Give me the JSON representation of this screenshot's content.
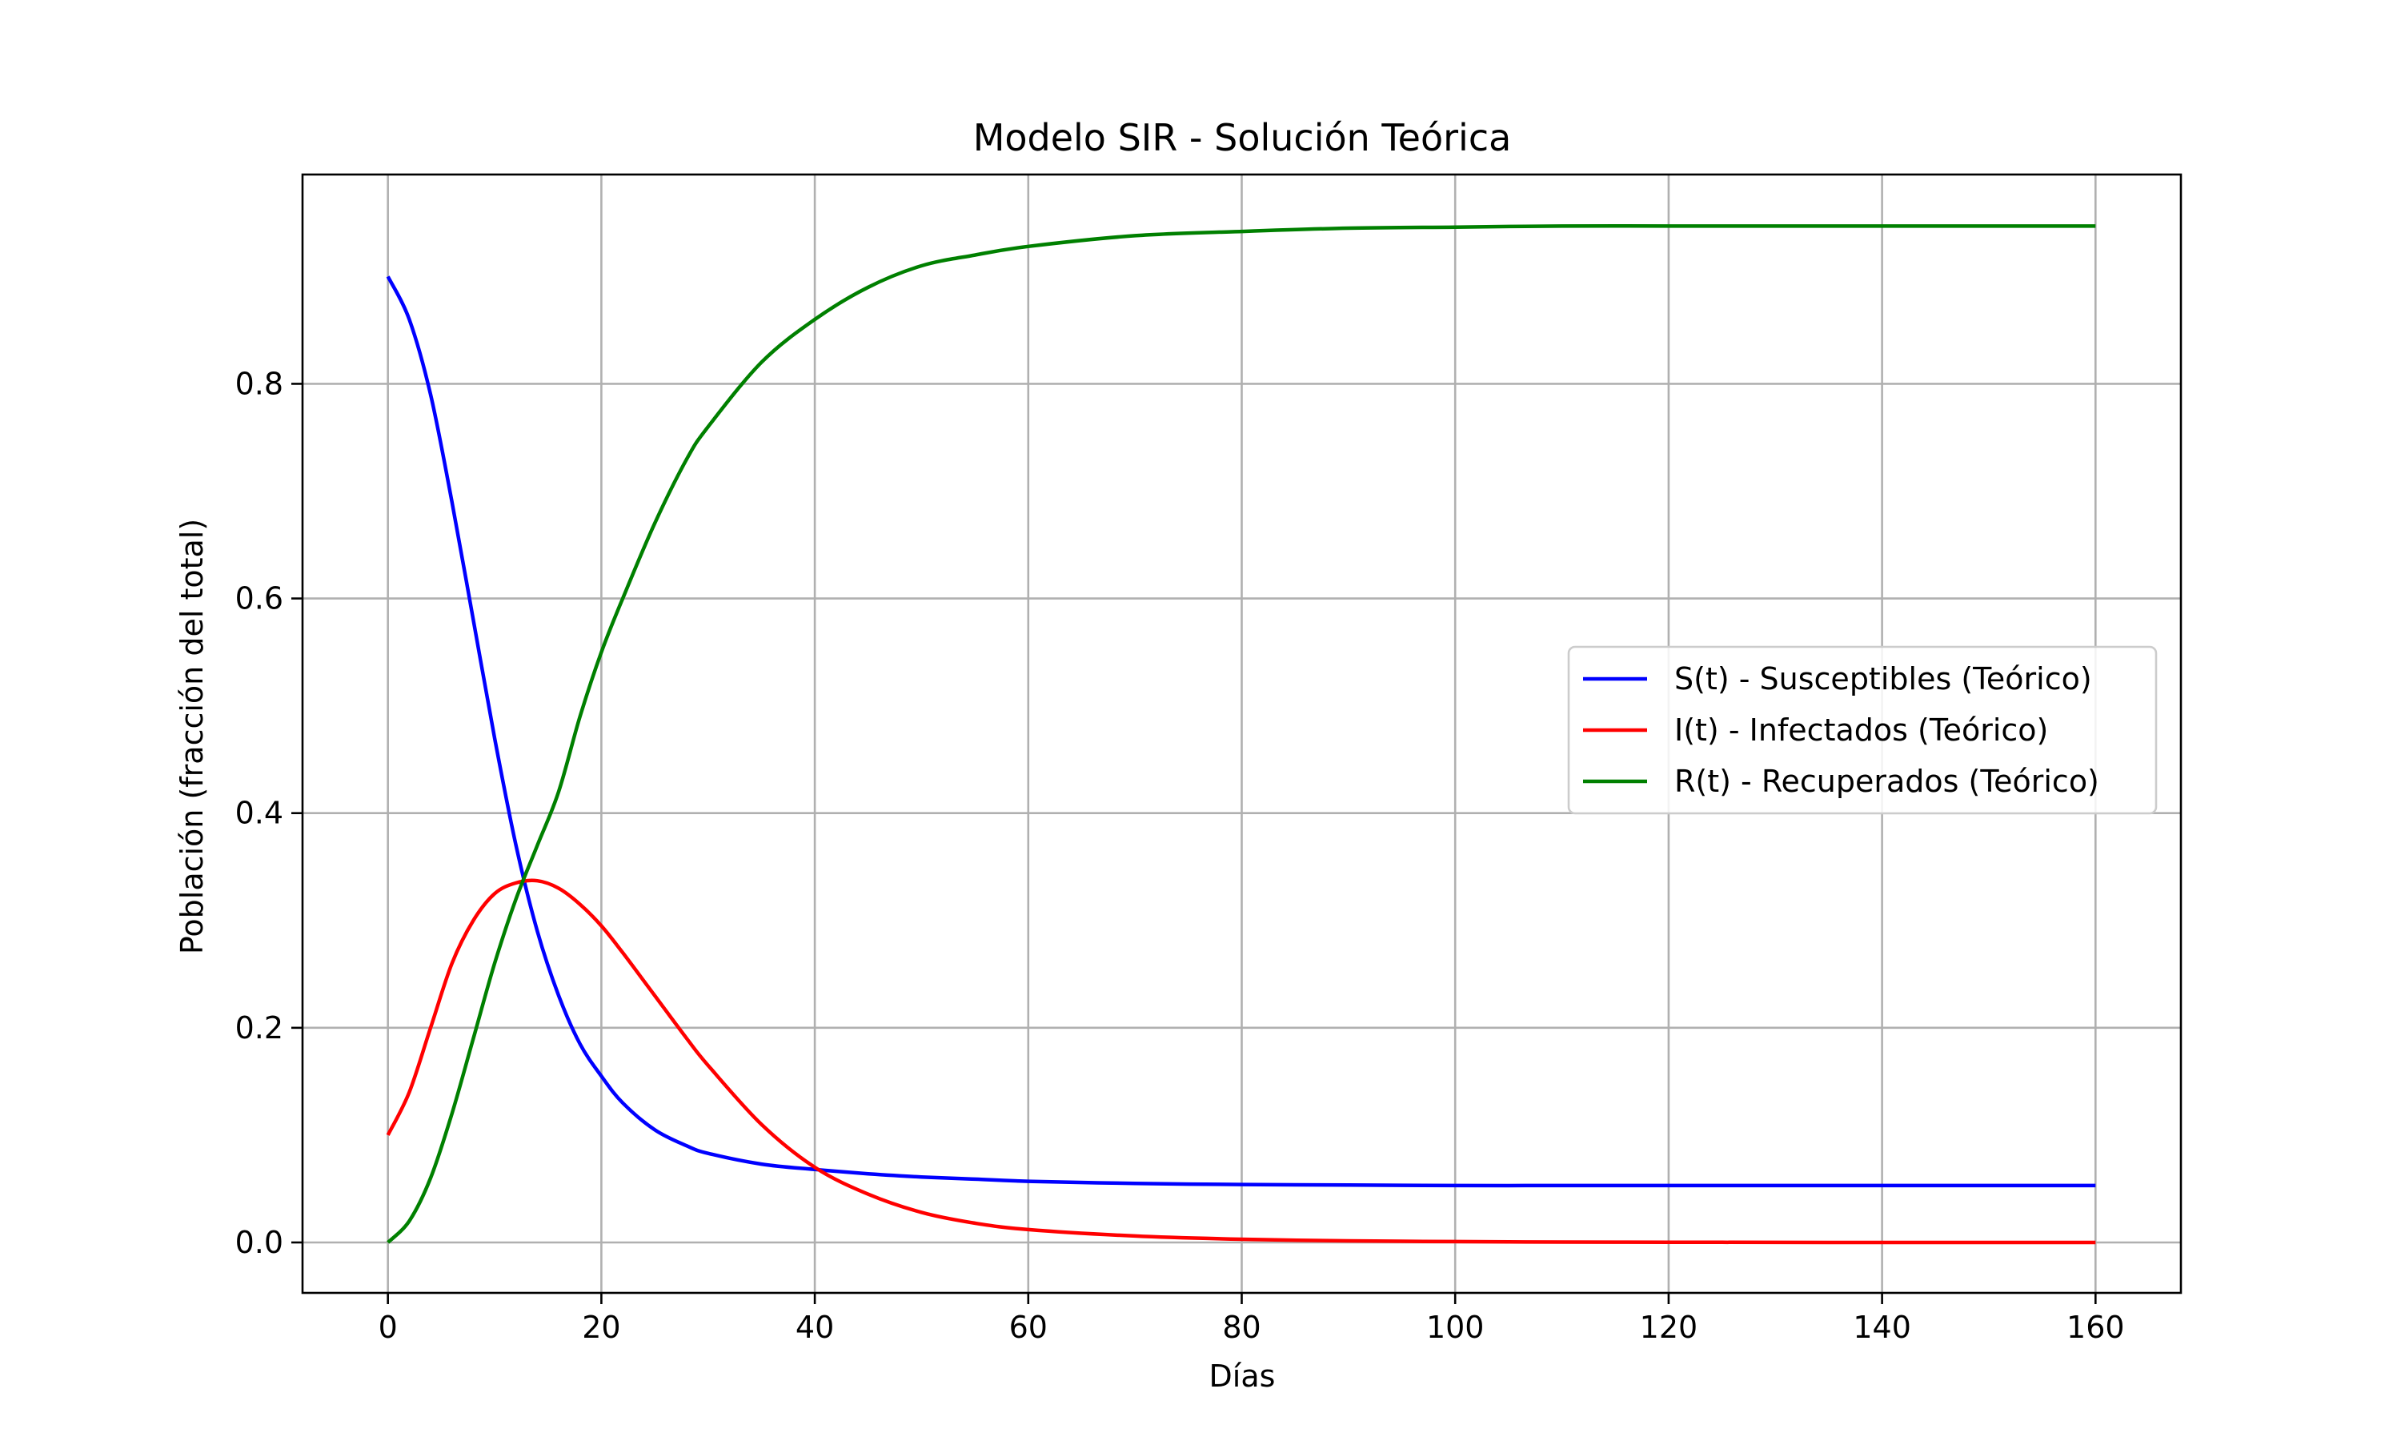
{
  "chart_data": {
    "type": "line",
    "title": "Modelo SIR - Solución Teórica",
    "xlabel": "Días",
    "ylabel": "Población (fracción del total)",
    "xlim": [
      -8,
      168
    ],
    "ylim": [
      -0.047,
      0.995
    ],
    "xticks": [
      0,
      20,
      40,
      60,
      80,
      100,
      120,
      140,
      160
    ],
    "yticks": [
      0.0,
      0.2,
      0.4,
      0.6,
      0.8
    ],
    "xtick_labels": [
      "0",
      "20",
      "40",
      "60",
      "80",
      "100",
      "120",
      "140",
      "160"
    ],
    "ytick_labels": [
      "0.0",
      "0.2",
      "0.4",
      "0.6",
      "0.8"
    ],
    "grid": true,
    "legend_position": "center-right",
    "x": [
      0,
      2,
      4,
      6,
      8,
      10,
      12,
      14,
      16,
      18,
      20,
      22,
      25,
      28,
      30,
      35,
      40,
      45,
      50,
      55,
      60,
      70,
      80,
      90,
      100,
      110,
      120,
      130,
      140,
      150,
      160
    ],
    "series": [
      {
        "name": "S(t) - Susceptibles (Teórico)",
        "color": "#0000ff",
        "values": [
          0.9,
          0.86,
          0.79,
          0.69,
          0.58,
          0.47,
          0.37,
          0.29,
          0.23,
          0.185,
          0.155,
          0.13,
          0.105,
          0.09,
          0.083,
          0.073,
          0.068,
          0.064,
          0.061,
          0.059,
          0.057,
          0.055,
          0.054,
          0.0535,
          0.053,
          0.053,
          0.053,
          0.053,
          0.053,
          0.053,
          0.053
        ]
      },
      {
        "name": "I(t) - Infectados (Teórico)",
        "color": "#ff0000",
        "values": [
          0.1,
          0.14,
          0.2,
          0.26,
          0.3,
          0.325,
          0.335,
          0.337,
          0.33,
          0.315,
          0.295,
          0.27,
          0.23,
          0.19,
          0.165,
          0.11,
          0.07,
          0.045,
          0.028,
          0.018,
          0.012,
          0.006,
          0.003,
          0.0015,
          0.0008,
          0.0004,
          0.0002,
          0.0001,
          0.0,
          0.0,
          0.0
        ]
      },
      {
        "name": "R(t) - Recuperados (Teórico)",
        "color": "#008000",
        "values": [
          0.0,
          0.02,
          0.06,
          0.12,
          0.19,
          0.26,
          0.32,
          0.37,
          0.42,
          0.49,
          0.55,
          0.6,
          0.67,
          0.73,
          0.76,
          0.82,
          0.86,
          0.89,
          0.91,
          0.92,
          0.928,
          0.938,
          0.942,
          0.945,
          0.946,
          0.947,
          0.947,
          0.947,
          0.947,
          0.947,
          0.947
        ]
      }
    ]
  }
}
